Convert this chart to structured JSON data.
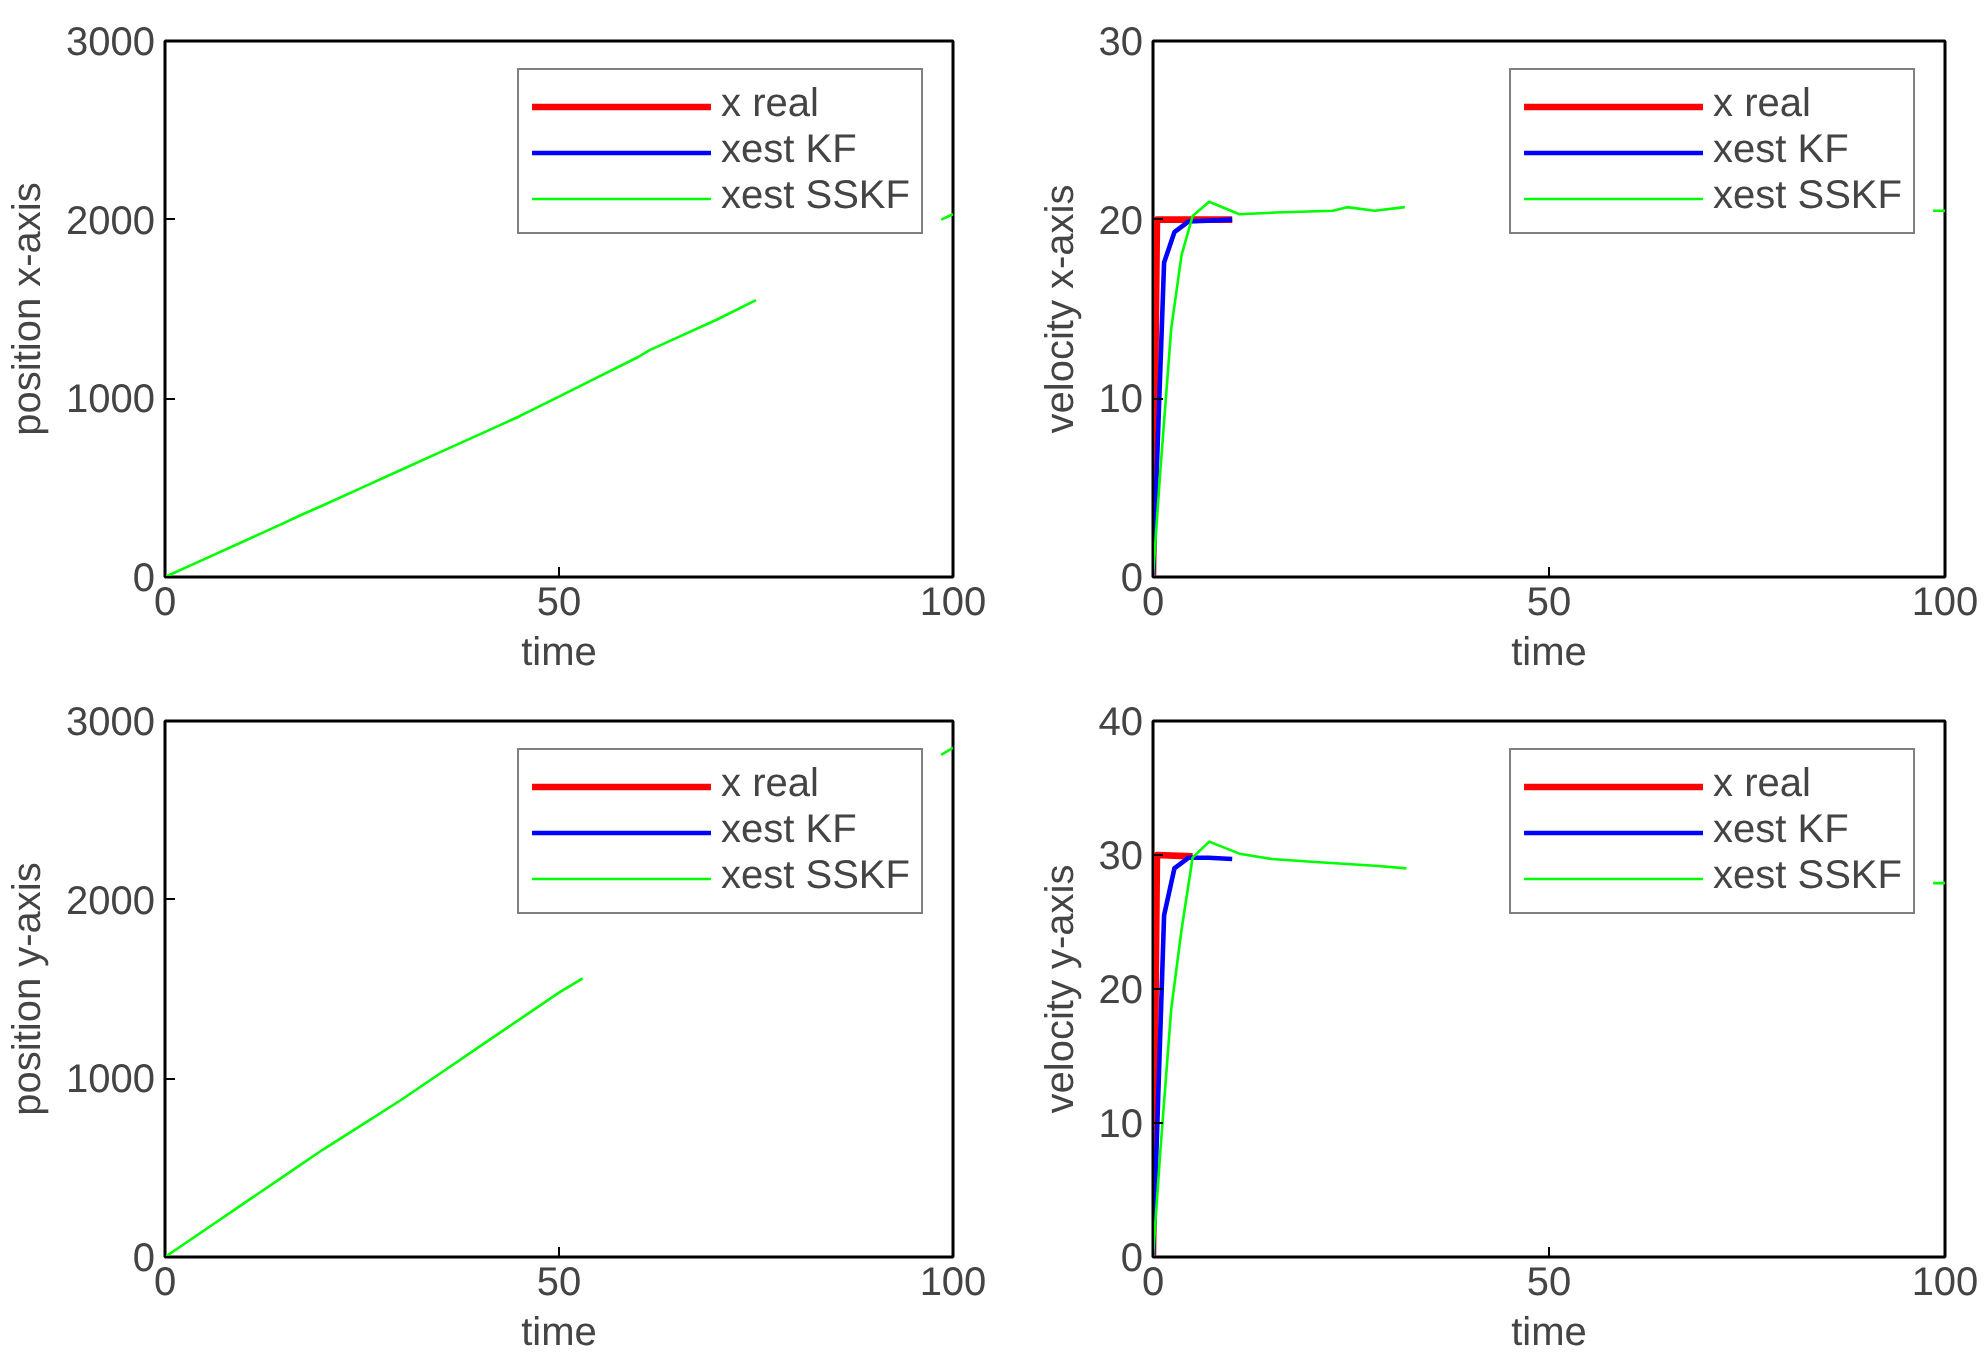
{
  "chart_data": [
    {
      "type": "line",
      "xlabel": "time",
      "ylabel": "position x-axis",
      "xlim": [
        0,
        100
      ],
      "xticks": [
        0,
        50,
        100
      ],
      "ylim": [
        0,
        3000
      ],
      "yticks": [
        0,
        1000,
        2000,
        3000
      ],
      "grid": false,
      "legend": "top right",
      "series": [
        {
          "name": "x real",
          "color": "#ff0000"
        },
        {
          "name": "xest KF",
          "color": "#0000ff"
        },
        {
          "name": "xest SSKF",
          "color": "#00ff00",
          "x": [
            0,
            5,
            10,
            15,
            17.4,
            20,
            25,
            30,
            35,
            40,
            45,
            50,
            55,
            60,
            61.5,
            65,
            70,
            75,
            87,
            98.5,
            100
          ],
          "values": [
            0,
            100,
            200,
            300,
            350,
            400,
            500,
            600,
            700,
            800,
            900,
            1010,
            1120,
            1230,
            1270,
            1340,
            1440,
            1550,
            null,
            2000,
            2030
          ]
        }
      ]
    },
    {
      "type": "line",
      "xlabel": "time",
      "ylabel": "velocity x-axis",
      "xlim": [
        0,
        100
      ],
      "xticks": [
        0,
        50,
        100
      ],
      "ylim": [
        0,
        30
      ],
      "yticks": [
        0,
        10,
        20,
        30
      ],
      "grid": false,
      "legend": "top right",
      "series": [
        {
          "name": "x real",
          "color": "#ff0000",
          "x": [
            0,
            0.5,
            10
          ],
          "values": [
            0,
            20,
            20
          ]
        },
        {
          "name": "xest KF",
          "color": "#0000ff",
          "x": [
            0,
            1.4,
            2.7,
            4.5,
            10
          ],
          "values": [
            0,
            17.6,
            19.3,
            19.9,
            20
          ]
        },
        {
          "name": "xest SSKF",
          "color": "#00ff00",
          "x": [
            0,
            0.9,
            2.3,
            3.6,
            5,
            7.1,
            10.9,
            15.5,
            22.7,
            24.5,
            28,
            31.8,
            60,
            98.5,
            100
          ],
          "values": [
            0,
            5.8,
            13.9,
            18,
            20.2,
            21,
            20.3,
            20.4,
            20.5,
            20.7,
            20.5,
            20.7,
            null,
            20.5,
            20.5
          ]
        }
      ]
    },
    {
      "type": "line",
      "xlabel": "time",
      "ylabel": "position y-axis",
      "xlim": [
        0,
        100
      ],
      "xticks": [
        0,
        50,
        100
      ],
      "ylim": [
        0,
        3000
      ],
      "yticks": [
        0,
        1000,
        2000,
        3000
      ],
      "grid": false,
      "legend": "top right",
      "series": [
        {
          "name": "x real",
          "color": "#ff0000"
        },
        {
          "name": "xest KF",
          "color": "#0000ff"
        },
        {
          "name": "xest SSKF",
          "color": "#00ff00",
          "x": [
            0,
            5,
            10,
            15,
            20,
            25,
            30,
            35,
            40,
            45,
            50,
            53,
            75,
            98.5,
            100
          ],
          "values": [
            0,
            150,
            300,
            450,
            600,
            740,
            880,
            1030,
            1180,
            1330,
            1480,
            1560,
            null,
            2810,
            2850
          ]
        }
      ]
    },
    {
      "type": "line",
      "xlabel": "time",
      "ylabel": "velocity y-axis",
      "xlim": [
        0,
        100
      ],
      "xticks": [
        0,
        50,
        100
      ],
      "ylim": [
        0,
        40
      ],
      "yticks": [
        0,
        10,
        20,
        30,
        40
      ],
      "grid": false,
      "legend": "top right",
      "series": [
        {
          "name": "x real",
          "color": "#ff0000",
          "x": [
            0,
            0.5,
            5
          ],
          "values": [
            0,
            30,
            29.9
          ]
        },
        {
          "name": "xest KF",
          "color": "#0000ff",
          "x": [
            0,
            1.4,
            2.7,
            4.5,
            7,
            10
          ],
          "values": [
            0,
            25.5,
            29,
            29.8,
            29.8,
            29.7
          ]
        },
        {
          "name": "xest SSKF",
          "color": "#00ff00",
          "x": [
            0,
            0.9,
            2.3,
            3.6,
            5,
            7.1,
            10.9,
            15,
            20,
            28,
            32,
            60,
            98.5,
            100
          ],
          "values": [
            0,
            7.7,
            18.5,
            24.4,
            29.8,
            31,
            30.1,
            29.7,
            29.5,
            29.2,
            29,
            null,
            27.9,
            27.9
          ]
        }
      ]
    }
  ]
}
